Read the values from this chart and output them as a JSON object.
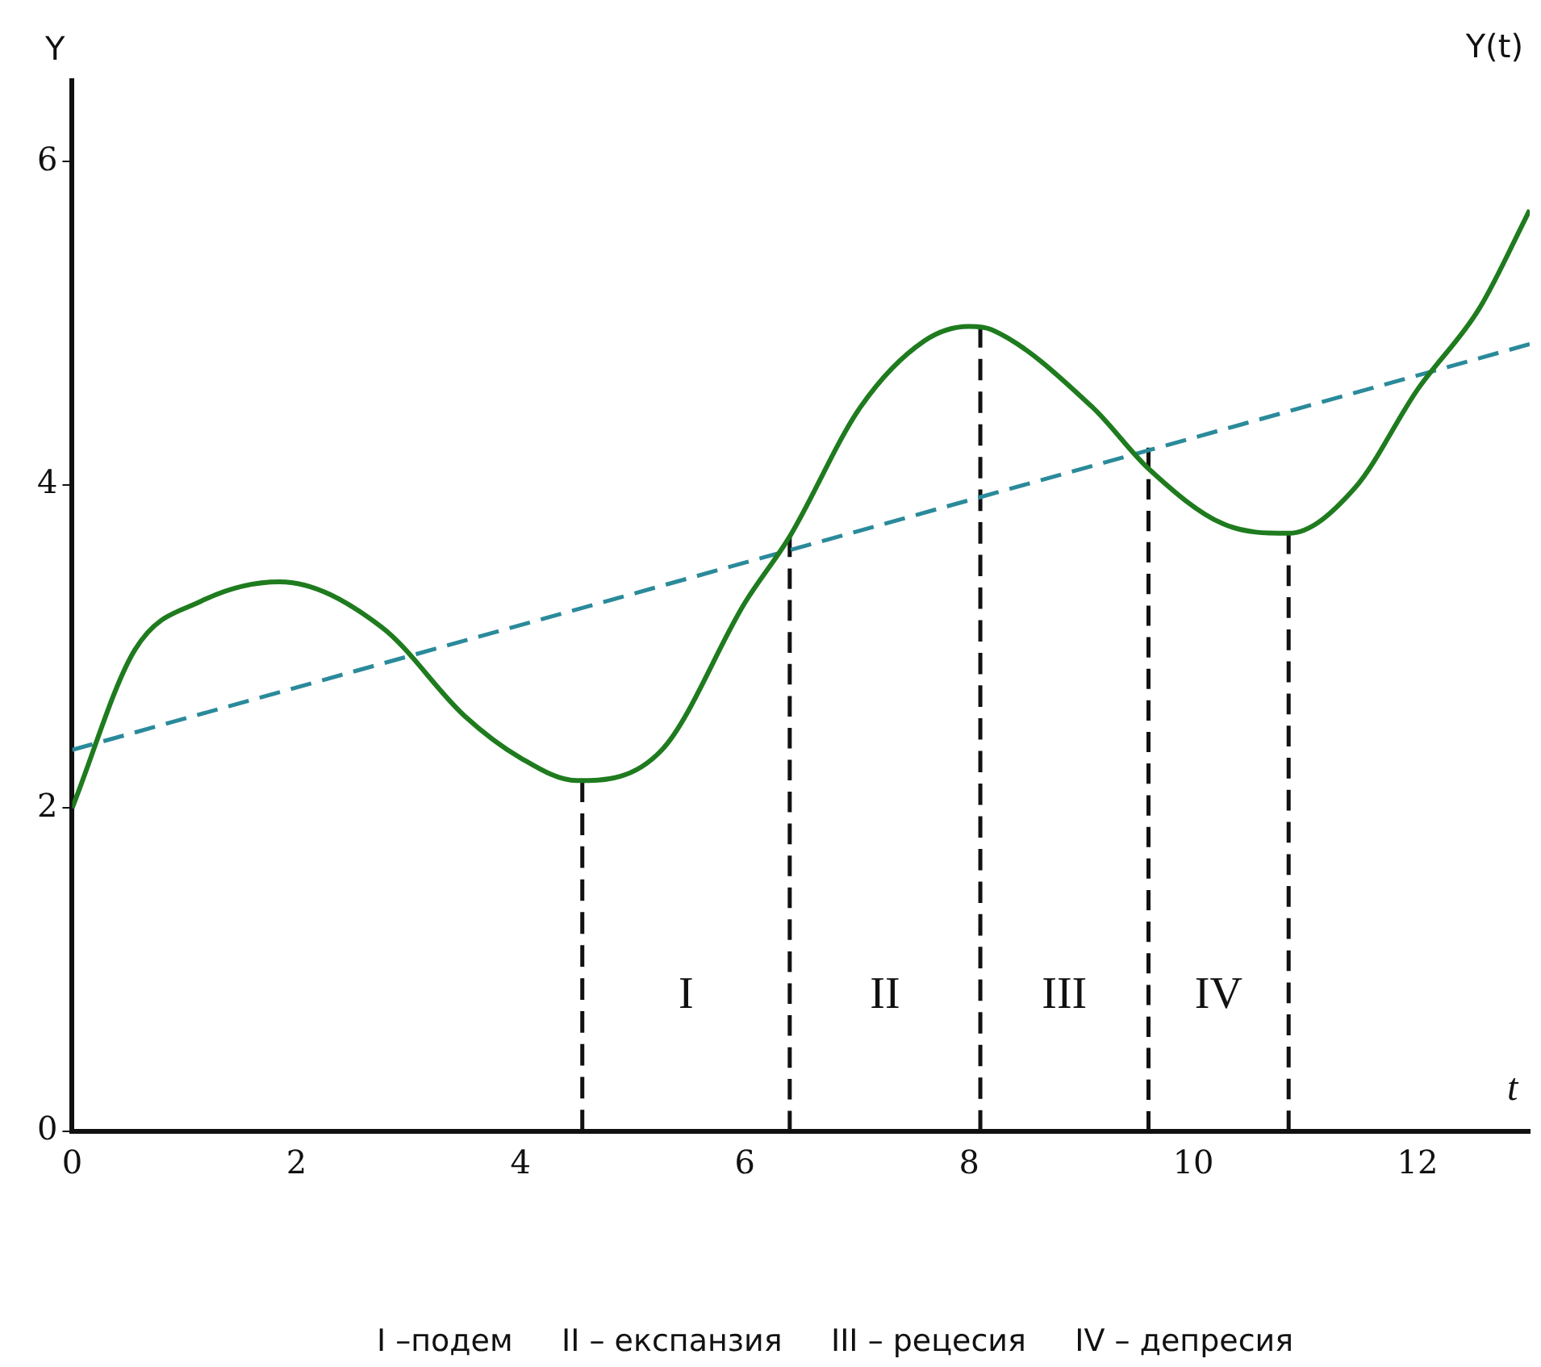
{
  "chart_data": {
    "type": "line",
    "xlabel": "t",
    "ylabel": "Y",
    "xlim": [
      0,
      13
    ],
    "ylim": [
      0,
      6.5
    ],
    "xticks": [
      0,
      2,
      4,
      6,
      8,
      10,
      12
    ],
    "yticks": [
      0,
      2,
      4,
      6
    ],
    "marker": "none",
    "series": [
      {
        "name": "Y(t)",
        "color": "#1e7b1e",
        "line_style": "solid",
        "x": [
          0,
          0.56,
          1.15,
          1.85,
          2.76,
          3.5,
          4,
          4.5,
          5.26,
          6,
          6.4,
          7.03,
          7.6,
          8,
          8.2,
          9.1,
          9.6,
          10.26,
          10.85,
          11.44,
          12,
          12.55,
          13
        ],
        "values": [
          2.0,
          2.98,
          3.28,
          3.4,
          3.12,
          2.57,
          2.31,
          2.17,
          2.36,
          3.27,
          3.68,
          4.48,
          4.89,
          4.98,
          4.96,
          4.48,
          4.1,
          3.76,
          3.7,
          3.98,
          4.59,
          5.09,
          5.7
        ]
      },
      {
        "color": "#2a8a9a",
        "line_style": "dashed",
        "x": [
          0,
          13
        ],
        "values": [
          2.36,
          4.87
        ]
      },
      {
        "color": "#111111",
        "line_style": "dashed",
        "x": [
          4.55,
          4.55
        ],
        "values": [
          0,
          2.17
        ]
      },
      {
        "color": "#111111",
        "line_style": "dashed",
        "x": [
          6.4,
          6.4
        ],
        "values": [
          0,
          3.68
        ]
      },
      {
        "color": "#111111",
        "line_style": "dashed",
        "x": [
          8.1,
          8.1
        ],
        "values": [
          0,
          4.98
        ]
      },
      {
        "color": "#111111",
        "line_style": "dashed",
        "x": [
          9.6,
          9.6
        ],
        "values": [
          0,
          4.23
        ]
      },
      {
        "color": "#111111",
        "line_style": "dashed",
        "x": [
          10.85,
          10.85
        ],
        "values": [
          0,
          3.7
        ]
      }
    ],
    "annotations": [
      "I",
      "II",
      "III",
      "IV",
      "I –подем     II – експанзия     III – рецесия     IV – депресия"
    ]
  }
}
